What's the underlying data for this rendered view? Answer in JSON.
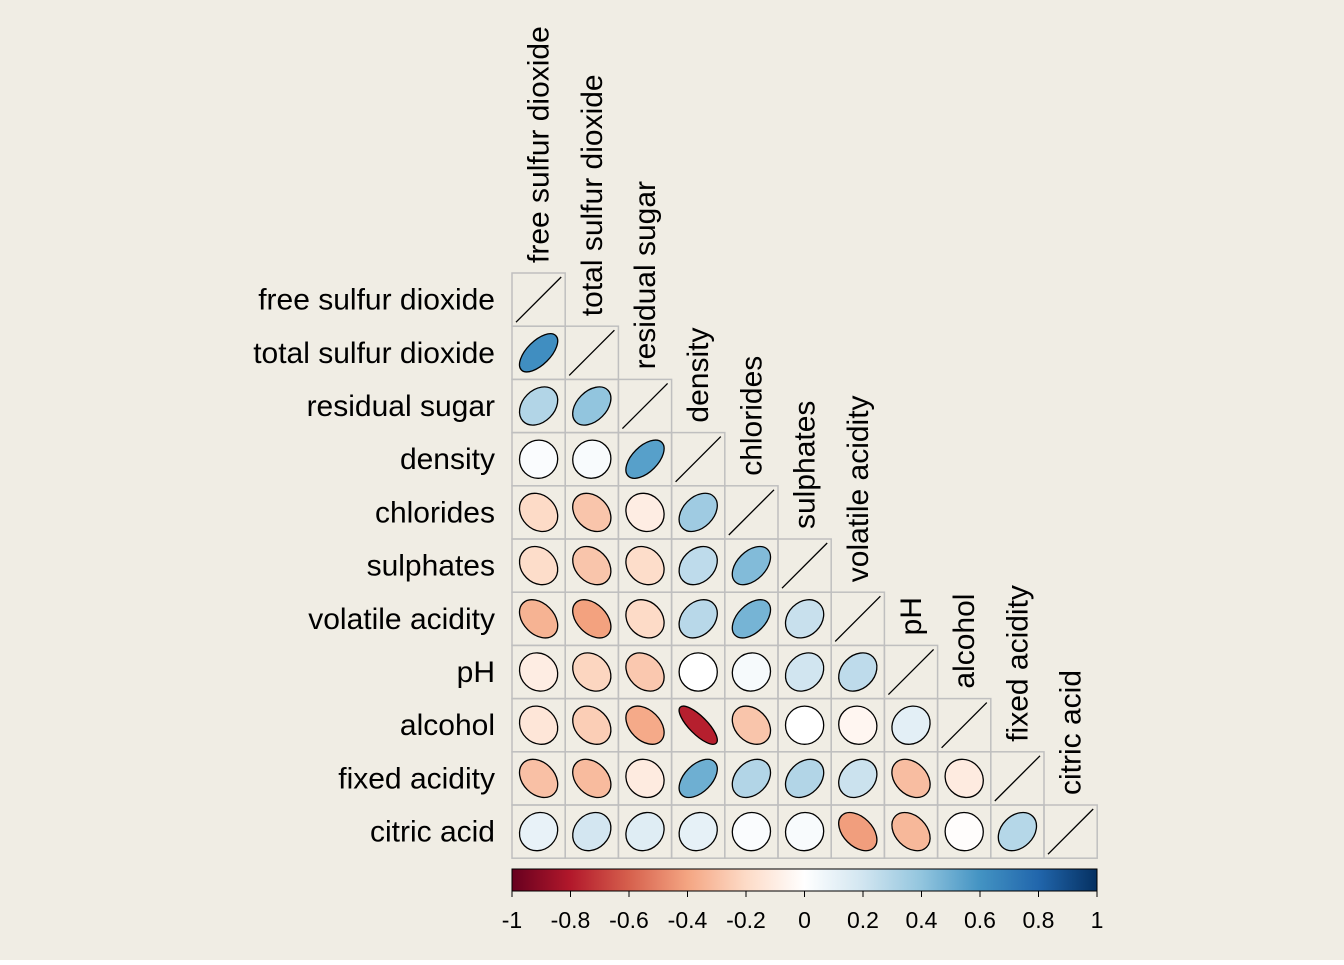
{
  "chart_data": {
    "type": "heatmap",
    "title": "",
    "variables": [
      "free sulfur dioxide",
      "total sulfur dioxide",
      "residual sugar",
      "density",
      "chlorides",
      "sulphates",
      "volatile acidity",
      "pH",
      "alcohol",
      "fixed acidity",
      "citric acid"
    ],
    "correlations": [
      [
        1.0
      ],
      [
        0.62,
        1.0
      ],
      [
        0.3,
        0.4,
        1.0
      ],
      [
        0.02,
        0.03,
        0.55,
        1.0
      ],
      [
        -0.2,
        -0.28,
        -0.1,
        0.36,
        1.0
      ],
      [
        -0.19,
        -0.28,
        -0.19,
        0.26,
        0.44,
        1.0
      ],
      [
        -0.35,
        -0.41,
        -0.2,
        0.28,
        0.47,
        0.23,
        1.0
      ],
      [
        -0.1,
        -0.22,
        -0.27,
        0.0,
        0.04,
        0.2,
        0.26,
        1.0
      ],
      [
        -0.14,
        -0.25,
        -0.38,
        -0.78,
        -0.28,
        0.0,
        -0.05,
        0.12,
        1.0
      ],
      [
        -0.3,
        -0.32,
        -0.11,
        0.49,
        0.3,
        0.3,
        0.22,
        -0.31,
        -0.11,
        1.0
      ],
      [
        0.1,
        0.19,
        0.14,
        0.11,
        0.02,
        0.03,
        -0.42,
        -0.33,
        -0.01,
        0.29,
        1.0
      ]
    ],
    "scale": {
      "min": -1,
      "max": 1,
      "palette": "RdBu"
    },
    "colorbar_ticks": [
      "-1",
      "-0.8",
      "-0.6",
      "-0.4",
      "-0.2",
      "0",
      "0.2",
      "0.4",
      "0.6",
      "0.8",
      "1"
    ],
    "colors": {
      "background": "#f0ede4",
      "grid": "#bfbfbf",
      "low": "#67001f",
      "mid": "#ffffff",
      "high": "#053061"
    }
  }
}
